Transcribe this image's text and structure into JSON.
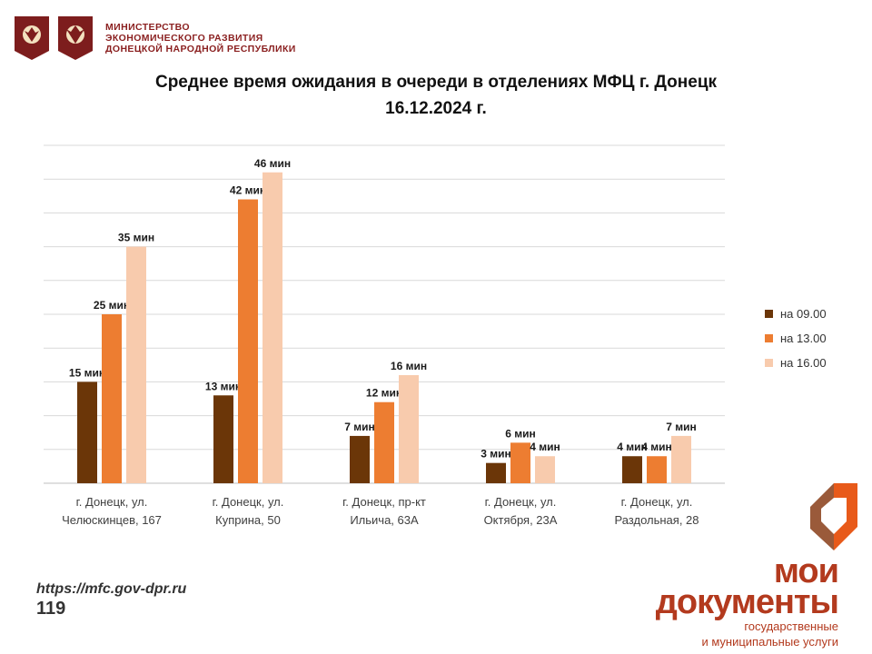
{
  "header": {
    "ministry_lines": [
      "МИНИСТЕРСТВО",
      "ЭКОНОМИЧЕСКОГО РАЗВИТИЯ",
      "ДОНЕЦКОЙ НАРОДНОЙ РЕСПУБЛИКИ"
    ]
  },
  "title_lines": [
    "Среднее время ожидания в очереди в отделениях МФЦ г. Донецк",
    "16.12.2024 г."
  ],
  "footer": {
    "url": "https://mfc.gov-dpr.ru",
    "page": "119"
  },
  "brand": {
    "line1": "мои",
    "line2": "документы",
    "sub1": "государственные",
    "sub2": "и муниципальные услуги"
  },
  "colors": {
    "s1": "#6b3608",
    "s2": "#ed7d31",
    "s3": "#f8cbad",
    "brand": "#b33a1e",
    "emblem": "#7d1d1d"
  },
  "chart_data": {
    "type": "bar",
    "categories": [
      [
        "г. Донецк, ул.",
        "Челюскинцев, 167"
      ],
      [
        "г. Донецк, ул.",
        "Куприна, 50"
      ],
      [
        "г. Донецк, пр-кт",
        "Ильича, 63А"
      ],
      [
        "г. Донецк, ул.",
        "Октября, 23А"
      ],
      [
        "г. Донецк, ул.",
        "Раздольная, 28"
      ]
    ],
    "series": [
      {
        "name": "на 09.00",
        "values": [
          15,
          13,
          7,
          3,
          4
        ],
        "labels": [
          "15 мин",
          "13 мин",
          "7 мин",
          "3 мин",
          "4 мин"
        ]
      },
      {
        "name": "на 13.00",
        "values": [
          25,
          42,
          12,
          6,
          4
        ],
        "labels": [
          "25 мин",
          "42 мин",
          "12 мин",
          "6 мин",
          "4 мин"
        ]
      },
      {
        "name": "на 16.00",
        "values": [
          35,
          46,
          16,
          4,
          7
        ],
        "labels": [
          "35 мин",
          "46 мин",
          "16 мин",
          "4 мин",
          "7 мин"
        ]
      }
    ],
    "ylim": [
      0,
      50
    ],
    "grid": true,
    "legend": "right"
  }
}
